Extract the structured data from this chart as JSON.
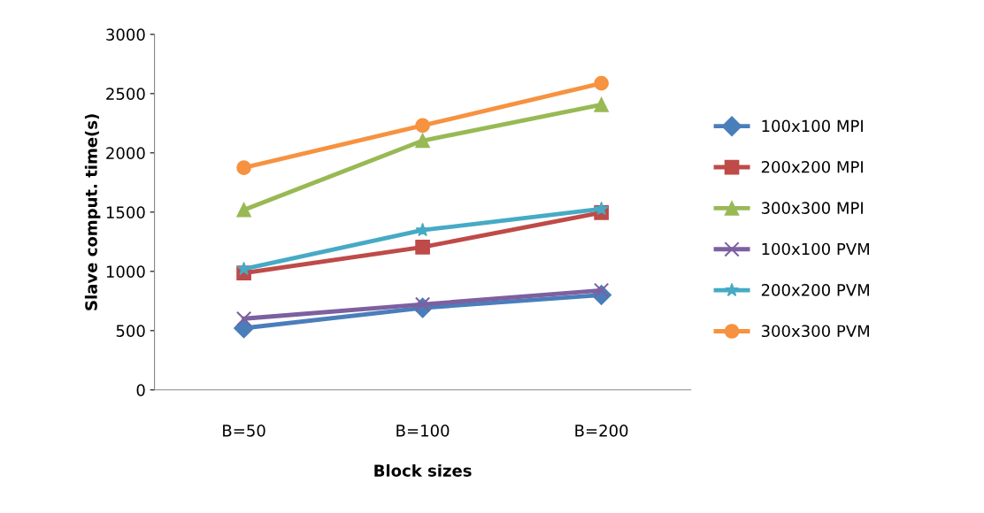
{
  "chart_data": {
    "type": "line",
    "xlabel": "Block sizes",
    "ylabel": "Slave comput. time(s)",
    "categories": [
      "B=50",
      "B=100",
      "B=200"
    ],
    "ylim": [
      0,
      3000
    ],
    "yticks": [
      0,
      500,
      1000,
      1500,
      2000,
      2500,
      3000
    ],
    "grid": false,
    "legend": "right",
    "line_style": "solid",
    "series": [
      {
        "name": "100x100 MPI",
        "color": "#4a7ebb",
        "marker": "diamond",
        "values": [
          521,
          692,
          801
        ]
      },
      {
        "name": "200x200 MPI",
        "color": "#be4b48",
        "marker": "square",
        "values": [
          986,
          1205,
          1496
        ]
      },
      {
        "name": "300x300 MPI",
        "color": "#98b954",
        "marker": "triangle",
        "values": [
          1519,
          2103,
          2407
        ]
      },
      {
        "name": "100x100 PVM",
        "color": "#7d60a0",
        "marker": "cross",
        "values": [
          601,
          721,
          840
        ]
      },
      {
        "name": "200x200 PVM",
        "color": "#46aac5",
        "marker": "star",
        "values": [
          1020,
          1348,
          1527
        ]
      },
      {
        "name": "300x300 PVM",
        "color": "#f69240",
        "marker": "circle",
        "values": [
          1875,
          2231,
          2587
        ]
      }
    ]
  }
}
